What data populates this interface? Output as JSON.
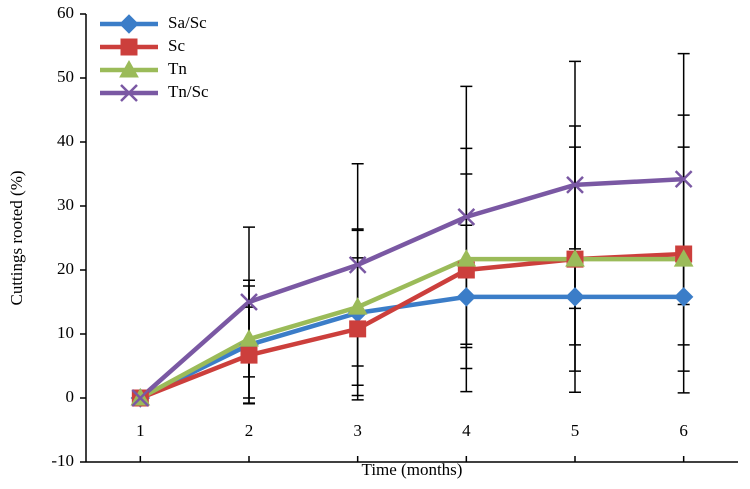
{
  "chart_data": {
    "type": "line",
    "x_label": "Time (months)",
    "y_label": "Cuttings rooted (%)",
    "x": [
      1,
      2,
      3,
      4,
      5,
      6
    ],
    "xlim": [
      0.5,
      6.5
    ],
    "xticks": [
      1,
      2,
      3,
      4,
      5,
      6
    ],
    "ylim": [
      -10,
      60
    ],
    "yticks": [
      -10,
      0,
      10,
      20,
      30,
      40,
      50,
      60
    ],
    "legend": "top-left",
    "series": [
      {
        "name": "Sa/Sc",
        "color": "#3b7dc8",
        "marker": "diamond",
        "values": [
          0,
          8.3,
          13.3,
          15.8,
          15.8,
          15.8
        ],
        "errors": [
          0,
          9.2,
          12.9,
          11.2,
          7.5,
          7.5
        ]
      },
      {
        "name": "Sc",
        "color": "#cc3f3c",
        "marker": "square",
        "values": [
          0,
          6.7,
          10.8,
          20,
          21.7,
          22.5
        ],
        "errors": [
          0,
          7.5,
          11.1,
          19,
          20.8,
          21.7
        ]
      },
      {
        "name": "Tn",
        "color": "#9bbb59",
        "marker": "triangle",
        "values": [
          0,
          9.2,
          14.2,
          21.7,
          21.7,
          21.7
        ],
        "errors": [
          0,
          9.2,
          12.2,
          13.3,
          17.5,
          17.5
        ]
      },
      {
        "name": "Tn/Sc",
        "color": "#7a58a3",
        "marker": "cross",
        "values": [
          0,
          15,
          20.8,
          28.3,
          33.3,
          34.2
        ],
        "errors": [
          0,
          11.7,
          15.8,
          20.4,
          19.3,
          19.6
        ]
      }
    ]
  }
}
